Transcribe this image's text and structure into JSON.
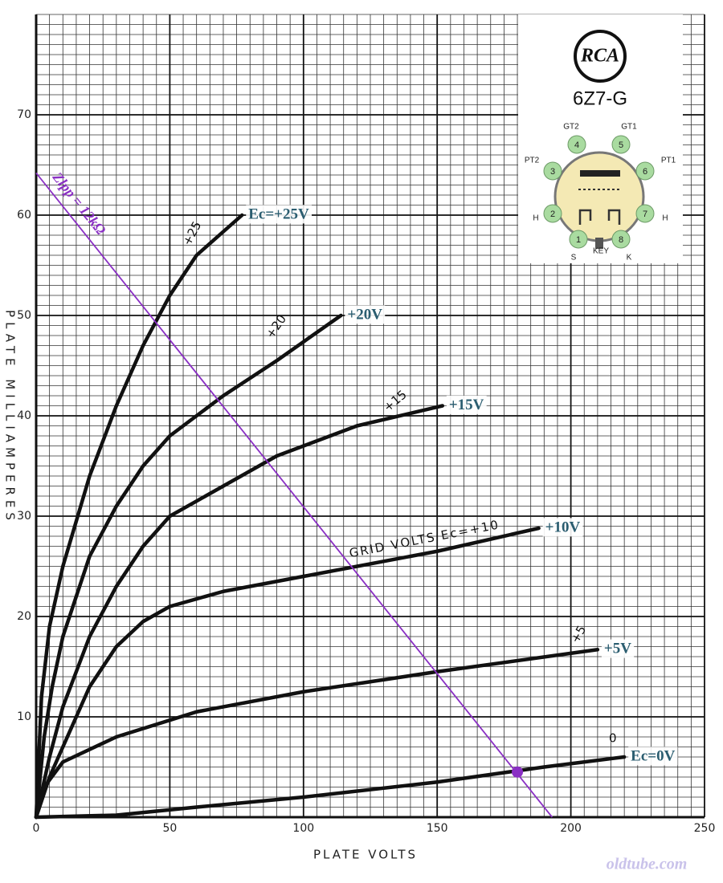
{
  "chart_data": {
    "type": "line",
    "x_label": "PLATE VOLTS",
    "y_label": "PLATE MILLIAMPERES",
    "xlim": [
      0,
      250
    ],
    "xticks": [
      0,
      50,
      100,
      150,
      200,
      250
    ],
    "ylim": [
      0,
      80
    ],
    "yticks": [
      10,
      20,
      30,
      40,
      50,
      60,
      70
    ],
    "grid": true,
    "series": [
      {
        "name": "Ec=+25V",
        "color": "#111111",
        "x": [
          0,
          2,
          5,
          10,
          20,
          30,
          40,
          50,
          60,
          77
        ],
        "values": [
          0,
          12,
          19,
          25,
          34,
          41,
          47,
          52,
          56,
          60
        ]
      },
      {
        "name": "+20V",
        "color": "#111111",
        "x": [
          0,
          3,
          6,
          10,
          20,
          30,
          40,
          50,
          70,
          90,
          114
        ],
        "values": [
          0,
          8,
          13,
          18,
          26,
          31,
          35,
          38,
          42,
          45.5,
          50
        ]
      },
      {
        "name": "+15V",
        "color": "#111111",
        "x": [
          0,
          5,
          10,
          20,
          30,
          40,
          50,
          70,
          90,
          120,
          152
        ],
        "values": [
          0,
          6,
          11,
          18,
          23,
          27,
          30,
          33,
          36,
          39,
          41
        ]
      },
      {
        "name": "+10V",
        "color": "#111111",
        "x": [
          0,
          5,
          10,
          20,
          30,
          40,
          50,
          70,
          100,
          150,
          188
        ],
        "values": [
          0,
          4,
          7,
          13,
          17,
          19.5,
          21,
          22.5,
          24,
          26.5,
          28.8
        ]
      },
      {
        "name": "+5V",
        "color": "#111111",
        "x": [
          0,
          3,
          10,
          30,
          60,
          100,
          150,
          210
        ],
        "values": [
          0,
          3,
          5.5,
          8,
          10.5,
          12.5,
          14.5,
          16.7
        ]
      },
      {
        "name": "Ec=0V",
        "color": "#111111",
        "x": [
          0,
          30,
          60,
          100,
          150,
          190,
          220
        ],
        "values": [
          0,
          0.2,
          1,
          2,
          3.5,
          5,
          6
        ]
      }
    ],
    "annotations": [
      "+25",
      "+20",
      "+15",
      "GRID VOLTS Ec=+10",
      "+5",
      "0"
    ],
    "load_line": {
      "label": "Zlpp = 12kΩ",
      "color": "#8a2fc4",
      "x": [
        0,
        193
      ],
      "values": [
        64.2,
        0
      ]
    },
    "operating_point": {
      "x": 180,
      "y": 4.5,
      "color": "#8a2fc4"
    },
    "watermark": "oldtube.com"
  },
  "tube_inset": {
    "brand": "RCA",
    "model": "6Z7-G",
    "key_label": "KEY",
    "pins": [
      {
        "number": "1",
        "label": "S"
      },
      {
        "number": "2",
        "label": "H"
      },
      {
        "number": "3",
        "label": "PT2"
      },
      {
        "number": "4",
        "label": "GT2"
      },
      {
        "number": "5",
        "label": "GT1"
      },
      {
        "number": "6",
        "label": "PT1"
      },
      {
        "number": "7",
        "label": "H"
      },
      {
        "number": "8",
        "label": "K"
      }
    ]
  }
}
